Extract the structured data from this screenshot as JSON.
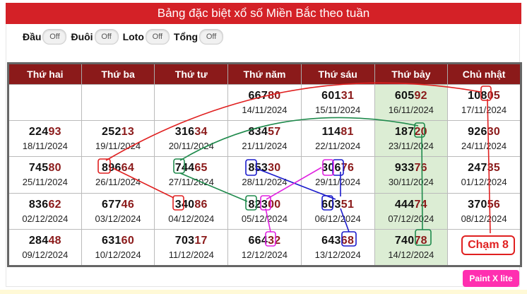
{
  "header": {
    "title": "Bảng đặc biệt xổ số Miền Bắc theo tuần"
  },
  "toggles": [
    {
      "label": "Đầu",
      "state": "Off"
    },
    {
      "label": "Đuôi",
      "state": "Off"
    },
    {
      "label": "Loto",
      "state": "Off"
    },
    {
      "label": "Tổng",
      "state": "Off"
    }
  ],
  "table": {
    "headers": [
      "Thứ hai",
      "Thứ ba",
      "Thứ tư",
      "Thứ năm",
      "Thứ sáu",
      "Thứ bảy",
      "Chủ nhật"
    ],
    "rows": [
      [
        null,
        null,
        null,
        {
          "head": "667",
          "tail": "80",
          "date": "14/11/2024"
        },
        {
          "head": "601",
          "tail": "31",
          "date": "15/11/2024"
        },
        {
          "head": "605",
          "tail": "92",
          "date": "16/11/2024"
        },
        {
          "head": "108",
          "tail": "05",
          "date": "17/11/2024"
        }
      ],
      [
        {
          "head": "224",
          "tail": "93",
          "date": "18/11/2024"
        },
        {
          "head": "252",
          "tail": "13",
          "date": "19/11/2024"
        },
        {
          "head": "316",
          "tail": "34",
          "date": "20/11/2024"
        },
        {
          "head": "834",
          "tail": "57",
          "date": "21/11/2024"
        },
        {
          "head": "114",
          "tail": "81",
          "date": "22/11/2024"
        },
        {
          "head": "187",
          "tail": "20",
          "date": "23/11/2024"
        },
        {
          "head": "926",
          "tail": "30",
          "date": "24/11/2024"
        }
      ],
      [
        {
          "head": "745",
          "tail": "80",
          "date": "25/11/2024"
        },
        {
          "head": "896",
          "tail": "64",
          "date": "26/11/2024"
        },
        {
          "head": "744",
          "tail": "65",
          "date": "27/11/2024"
        },
        {
          "head": "853",
          "tail": "30",
          "date": "28/11/2024"
        },
        {
          "head": "306",
          "tail": "76",
          "date": "29/11/2024"
        },
        {
          "head": "933",
          "tail": "76",
          "date": "30/11/2024"
        },
        {
          "head": "247",
          "tail": "35",
          "date": "01/12/2024"
        }
      ],
      [
        {
          "head": "836",
          "tail": "62",
          "date": "02/12/2024"
        },
        {
          "head": "677",
          "tail": "46",
          "date": "03/12/2024"
        },
        {
          "head": "340",
          "tail": "86",
          "date": "04/12/2024"
        },
        {
          "head": "823",
          "tail": "00",
          "date": "05/12/2024"
        },
        {
          "head": "603",
          "tail": "51",
          "date": "06/12/2024"
        },
        {
          "head": "444",
          "tail": "74",
          "date": "07/12/2024"
        },
        {
          "head": "370",
          "tail": "56",
          "date": "08/12/2024"
        }
      ],
      [
        {
          "head": "284",
          "tail": "48",
          "date": "09/12/2024"
        },
        {
          "head": "631",
          "tail": "60",
          "date": "10/12/2024"
        },
        {
          "head": "703",
          "tail": "17",
          "date": "11/12/2024"
        },
        {
          "head": "664",
          "tail": "32",
          "date": "12/12/2024"
        },
        {
          "head": "643",
          "tail": "68",
          "date": "13/12/2024"
        },
        {
          "head": "740",
          "tail": "78",
          "date": "14/12/2024"
        },
        null
      ]
    ]
  },
  "annotation": {
    "label": "Chạm 8"
  },
  "colors": {
    "red": "#e02020",
    "green": "#1f8a4c",
    "blue": "#1a1acc",
    "magenta": "#e020e0",
    "header_red": "#d42127",
    "table_header": "#8b1a1a",
    "saturday_bg": "#dcedd4"
  },
  "badge": {
    "label": "Paint X lite"
  }
}
